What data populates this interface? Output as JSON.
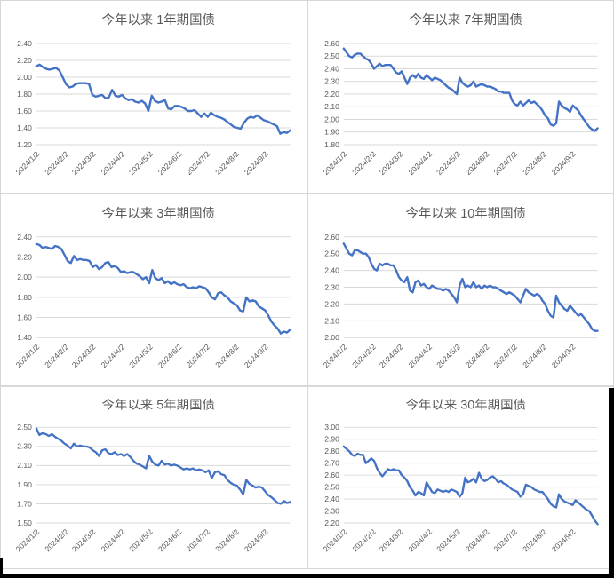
{
  "style": {
    "line_color": "#4472C4",
    "grid_color": "#d9d9d9",
    "text_color": "#595959",
    "cell_border_color": "#d7d7d7",
    "background": "#ffffff"
  },
  "x_axis": {
    "labels": [
      "2024/1/2",
      "2024/2/2",
      "2024/3/2",
      "2024/4/2",
      "2024/5/2",
      "2024/6/2",
      "2024/7/2",
      "2024/8/2",
      "2024/9/2"
    ],
    "tick_days": [
      0,
      31,
      60,
      91,
      121,
      152,
      182,
      213,
      244
    ],
    "span_days": 271,
    "label_rotation_deg": -45
  },
  "chart_data": [
    {
      "type": "line",
      "title": "今年以来 1年期国债",
      "ylim": [
        1.2,
        2.4
      ],
      "y_step": 0.2,
      "grid": true,
      "legend": "none",
      "x_labels": [
        "2024/1/2",
        "2024/2/2",
        "2024/3/2",
        "2024/4/2",
        "2024/5/2",
        "2024/6/2",
        "2024/7/2",
        "2024/8/2",
        "2024/9/2"
      ],
      "values": [
        2.13,
        2.15,
        2.12,
        2.1,
        2.09,
        2.1,
        2.11,
        2.08,
        2.0,
        1.92,
        1.88,
        1.89,
        1.92,
        1.93,
        1.93,
        1.93,
        1.92,
        1.79,
        1.77,
        1.78,
        1.79,
        1.75,
        1.76,
        1.85,
        1.78,
        1.77,
        1.79,
        1.75,
        1.73,
        1.74,
        1.71,
        1.7,
        1.72,
        1.69,
        1.6,
        1.78,
        1.72,
        1.7,
        1.71,
        1.73,
        1.63,
        1.62,
        1.66,
        1.66,
        1.65,
        1.63,
        1.6,
        1.6,
        1.61,
        1.57,
        1.53,
        1.57,
        1.53,
        1.58,
        1.55,
        1.53,
        1.52,
        1.5,
        1.47,
        1.44,
        1.41,
        1.4,
        1.39,
        1.46,
        1.51,
        1.53,
        1.52,
        1.55,
        1.52,
        1.49,
        1.48,
        1.46,
        1.44,
        1.42,
        1.33,
        1.35,
        1.34,
        1.37
      ]
    },
    {
      "type": "line",
      "title": "今年以来 7年期国债",
      "ylim": [
        1.8,
        2.6
      ],
      "y_step": 0.1,
      "grid": true,
      "legend": "none",
      "x_labels": [
        "2024/1/2",
        "2024/2/2",
        "2024/3/2",
        "2024/4/2",
        "2024/5/2",
        "2024/6/2",
        "2024/7/2",
        "2024/8/2",
        "2024/9/2"
      ],
      "values": [
        2.56,
        2.53,
        2.5,
        2.49,
        2.51,
        2.52,
        2.52,
        2.5,
        2.48,
        2.47,
        2.44,
        2.4,
        2.42,
        2.44,
        2.42,
        2.43,
        2.43,
        2.43,
        2.4,
        2.37,
        2.36,
        2.38,
        2.33,
        2.28,
        2.33,
        2.35,
        2.33,
        2.36,
        2.33,
        2.32,
        2.35,
        2.33,
        2.31,
        2.33,
        2.32,
        2.31,
        2.29,
        2.27,
        2.25,
        2.24,
        2.22,
        2.2,
        2.33,
        2.29,
        2.27,
        2.26,
        2.27,
        2.3,
        2.26,
        2.27,
        2.28,
        2.27,
        2.26,
        2.26,
        2.25,
        2.24,
        2.22,
        2.22,
        2.21,
        2.21,
        2.21,
        2.15,
        2.12,
        2.11,
        2.14,
        2.11,
        2.13,
        2.15,
        2.13,
        2.14,
        2.12,
        2.1,
        2.07,
        2.03,
        2.01,
        1.96,
        1.95,
        1.97,
        2.14,
        2.11,
        2.09,
        2.08,
        2.06,
        2.11,
        2.09,
        2.07,
        2.03,
        2.0,
        1.97,
        1.94,
        1.92,
        1.91,
        1.93
      ]
    },
    {
      "type": "line",
      "title": "今年以来 3年期国债",
      "ylim": [
        1.4,
        2.4
      ],
      "y_step": 0.2,
      "grid": true,
      "legend": "none",
      "x_labels": [
        "2024/1/2",
        "2024/2/2",
        "2024/3/2",
        "2024/4/2",
        "2024/5/2",
        "2024/6/2",
        "2024/7/2",
        "2024/8/2",
        "2024/9/2"
      ],
      "values": [
        2.33,
        2.32,
        2.29,
        2.3,
        2.29,
        2.28,
        2.31,
        2.3,
        2.28,
        2.22,
        2.16,
        2.14,
        2.21,
        2.17,
        2.18,
        2.17,
        2.17,
        2.16,
        2.1,
        2.12,
        2.08,
        2.1,
        2.14,
        2.15,
        2.1,
        2.11,
        2.09,
        2.05,
        2.06,
        2.04,
        2.05,
        2.05,
        2.03,
        2.01,
        1.98,
        2.0,
        1.94,
        2.07,
        1.99,
        1.97,
        1.99,
        1.94,
        1.96,
        1.93,
        1.95,
        1.93,
        1.92,
        1.93,
        1.9,
        1.89,
        1.9,
        1.89,
        1.91,
        1.9,
        1.89,
        1.85,
        1.8,
        1.78,
        1.84,
        1.85,
        1.82,
        1.8,
        1.76,
        1.74,
        1.72,
        1.67,
        1.66,
        1.8,
        1.76,
        1.77,
        1.76,
        1.71,
        1.69,
        1.67,
        1.62,
        1.56,
        1.52,
        1.49,
        1.44,
        1.46,
        1.45,
        1.48
      ]
    },
    {
      "type": "line",
      "title": "今年以来 10年期国债",
      "ylim": [
        2.0,
        2.6
      ],
      "y_step": 0.1,
      "grid": true,
      "legend": "none",
      "x_labels": [
        "2024/1/2",
        "2024/2/2",
        "2024/3/2",
        "2024/4/2",
        "2024/5/2",
        "2024/6/2",
        "2024/7/2",
        "2024/8/2",
        "2024/9/2"
      ],
      "values": [
        2.56,
        2.53,
        2.5,
        2.49,
        2.52,
        2.52,
        2.51,
        2.5,
        2.5,
        2.48,
        2.44,
        2.41,
        2.4,
        2.44,
        2.43,
        2.44,
        2.44,
        2.43,
        2.43,
        2.4,
        2.36,
        2.34,
        2.33,
        2.36,
        2.28,
        2.27,
        2.33,
        2.34,
        2.31,
        2.32,
        2.3,
        2.29,
        2.31,
        2.3,
        2.29,
        2.29,
        2.28,
        2.29,
        2.28,
        2.26,
        2.24,
        2.21,
        2.31,
        2.35,
        2.3,
        2.31,
        2.3,
        2.33,
        2.3,
        2.31,
        2.29,
        2.31,
        2.3,
        2.31,
        2.3,
        2.3,
        2.29,
        2.28,
        2.27,
        2.26,
        2.27,
        2.26,
        2.25,
        2.23,
        2.21,
        2.25,
        2.29,
        2.27,
        2.26,
        2.25,
        2.26,
        2.25,
        2.22,
        2.2,
        2.16,
        2.13,
        2.12,
        2.25,
        2.21,
        2.19,
        2.17,
        2.16,
        2.19,
        2.17,
        2.15,
        2.13,
        2.14,
        2.12,
        2.1,
        2.08,
        2.05,
        2.04,
        2.04
      ]
    },
    {
      "type": "line",
      "title": "今年以来 5年期国债",
      "ylim": [
        1.5,
        2.5
      ],
      "y_step": 0.2,
      "grid": true,
      "legend": "none",
      "x_labels": [
        "2024/1/2",
        "2024/2/2",
        "2024/3/2",
        "2024/4/2",
        "2024/5/2",
        "2024/6/2",
        "2024/7/2",
        "2024/8/2",
        "2024/9/2"
      ],
      "values": [
        2.49,
        2.42,
        2.44,
        2.43,
        2.41,
        2.43,
        2.4,
        2.38,
        2.36,
        2.33,
        2.31,
        2.28,
        2.33,
        2.3,
        2.31,
        2.3,
        2.3,
        2.29,
        2.26,
        2.24,
        2.2,
        2.26,
        2.27,
        2.23,
        2.22,
        2.24,
        2.21,
        2.22,
        2.2,
        2.22,
        2.19,
        2.15,
        2.12,
        2.11,
        2.09,
        2.07,
        2.2,
        2.14,
        2.11,
        2.1,
        2.15,
        2.11,
        2.12,
        2.1,
        2.11,
        2.1,
        2.08,
        2.06,
        2.07,
        2.06,
        2.07,
        2.05,
        2.06,
        2.05,
        2.03,
        2.05,
        1.97,
        2.03,
        2.04,
        2.01,
        2.0,
        1.95,
        1.92,
        1.9,
        1.89,
        1.85,
        1.8,
        1.95,
        1.91,
        1.89,
        1.87,
        1.88,
        1.87,
        1.83,
        1.79,
        1.77,
        1.74,
        1.71,
        1.7,
        1.73,
        1.71,
        1.72
      ]
    },
    {
      "type": "line",
      "title": "今年以来 30年期国债",
      "ylim": [
        2.2,
        3.0
      ],
      "y_step": 0.1,
      "grid": true,
      "legend": "none",
      "x_labels": [
        "2024/1/2",
        "2024/2/2",
        "2024/3/2",
        "2024/4/2",
        "2024/5/2",
        "2024/6/2",
        "2024/7/2",
        "2024/8/2",
        "2024/9/2"
      ],
      "values": [
        2.84,
        2.82,
        2.8,
        2.77,
        2.76,
        2.78,
        2.77,
        2.77,
        2.7,
        2.72,
        2.74,
        2.72,
        2.66,
        2.62,
        2.59,
        2.62,
        2.65,
        2.64,
        2.65,
        2.64,
        2.64,
        2.6,
        2.58,
        2.55,
        2.5,
        2.47,
        2.43,
        2.46,
        2.45,
        2.43,
        2.54,
        2.5,
        2.46,
        2.45,
        2.48,
        2.47,
        2.46,
        2.47,
        2.46,
        2.48,
        2.47,
        2.46,
        2.42,
        2.45,
        2.58,
        2.54,
        2.55,
        2.57,
        2.54,
        2.62,
        2.57,
        2.55,
        2.56,
        2.58,
        2.59,
        2.57,
        2.54,
        2.55,
        2.53,
        2.52,
        2.5,
        2.48,
        2.47,
        2.46,
        2.42,
        2.44,
        2.52,
        2.51,
        2.5,
        2.48,
        2.47,
        2.46,
        2.46,
        2.43,
        2.4,
        2.36,
        2.34,
        2.33,
        2.44,
        2.4,
        2.38,
        2.37,
        2.36,
        2.35,
        2.39,
        2.37,
        2.35,
        2.33,
        2.31,
        2.3,
        2.26,
        2.22,
        2.19
      ]
    }
  ]
}
